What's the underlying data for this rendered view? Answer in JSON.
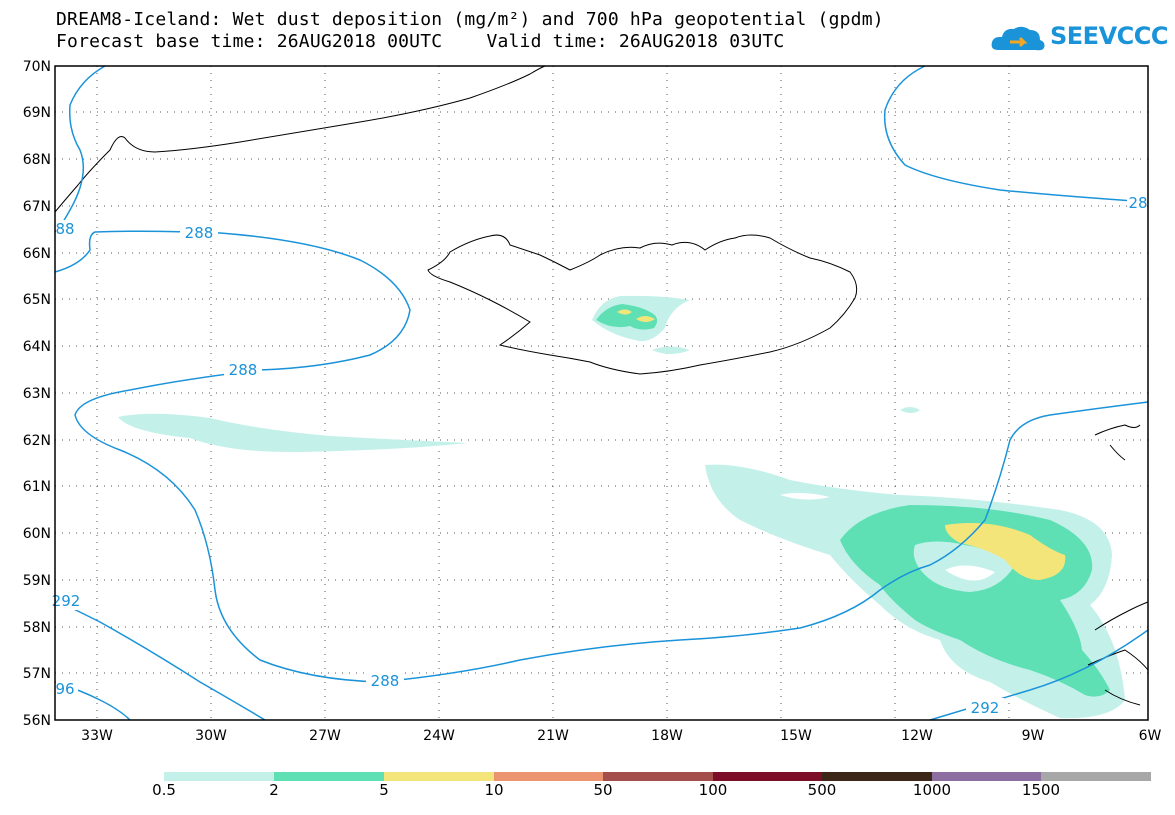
{
  "title_line1": "DREAM8-Iceland: Wet dust deposition (mg/m²) and 700 hPa geopotential (gpdm)",
  "title_line2": "Forecast base time: 26AUG2018 00UTC    Valid time: 26AUG2018 03UTC",
  "logo_text": "SEEVCCC",
  "lat_labels": [
    "70N",
    "69N",
    "68N",
    "67N",
    "66N",
    "65N",
    "64N",
    "63N",
    "62N",
    "61N",
    "60N",
    "59N",
    "58N",
    "57N",
    "56N"
  ],
  "lon_labels": [
    "33W",
    "30W",
    "27W",
    "24W",
    "21W",
    "18W",
    "15W",
    "12W",
    "9W",
    "6W"
  ],
  "contour_labels": [
    "288",
    "288",
    "288",
    "292",
    "292",
    "96",
    "88",
    "28"
  ],
  "colorbar": {
    "colors": [
      "#c3f1ea",
      "#5ee0b4",
      "#f4e57a",
      "#ec9470",
      "#a34e4a",
      "#7d0e27",
      "#3b2618",
      "#8d6ea0",
      "#a7a7a7"
    ],
    "labels": [
      "0.5",
      "2",
      "5",
      "10",
      "50",
      "100",
      "500",
      "1000",
      "1500"
    ]
  },
  "colors": {
    "contour": "#1a93d9",
    "land": "#000000",
    "accent": "#1a93d9"
  }
}
